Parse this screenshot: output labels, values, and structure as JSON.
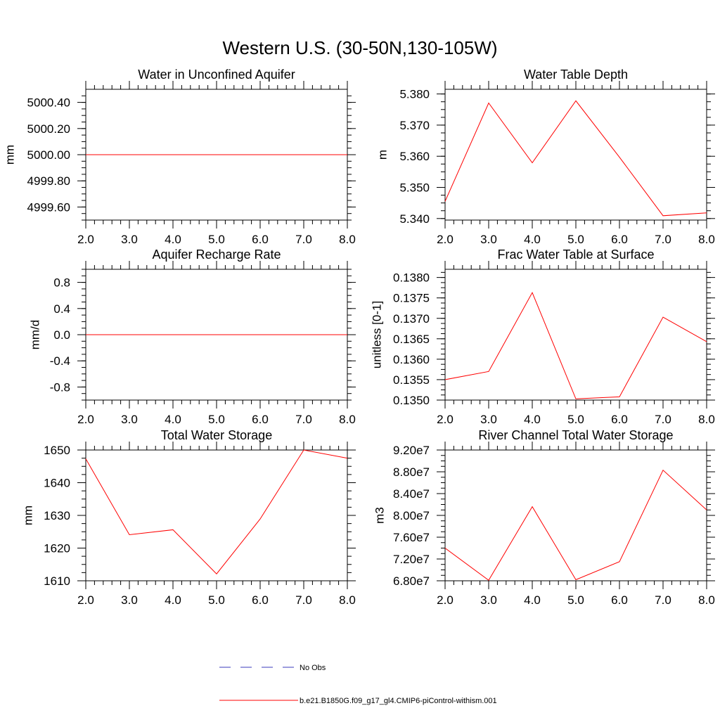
{
  "title": "Western U.S. (30-50N,130-105W)",
  "colors": {
    "model": "#ff0000",
    "obs": "#3b3bbd",
    "axes": "#000000"
  },
  "chart_data": [
    {
      "type": "line",
      "title": "Water in Unconfined Aquifer",
      "ylabel": "mm",
      "x": [
        2,
        3,
        4,
        5,
        6,
        7,
        8
      ],
      "xlim": [
        2,
        8
      ],
      "ylim": [
        4999.5,
        5000.5
      ],
      "xticks": [
        "2.0",
        "3.0",
        "4.0",
        "5.0",
        "6.0",
        "7.0",
        "8.0"
      ],
      "yticks": [
        {
          "v": 4999.6,
          "label": "4999.60"
        },
        {
          "v": 4999.8,
          "label": "4999.80"
        },
        {
          "v": 5000.0,
          "label": "5000.00"
        },
        {
          "v": 5000.2,
          "label": "5000.20"
        },
        {
          "v": 5000.4,
          "label": "5000.40"
        }
      ],
      "series": [
        {
          "values": [
            5000,
            5000,
            5000,
            5000,
            5000,
            5000,
            5000
          ]
        }
      ]
    },
    {
      "type": "line",
      "title": "Water Table Depth",
      "ylabel": "m",
      "x": [
        2,
        3,
        4,
        5,
        6,
        7,
        8
      ],
      "xlim": [
        2,
        8
      ],
      "ylim": [
        5.3395,
        5.3815
      ],
      "xticks": [
        "2.0",
        "3.0",
        "4.0",
        "5.0",
        "6.0",
        "7.0",
        "8.0"
      ],
      "yticks": [
        {
          "v": 5.34,
          "label": "5.340"
        },
        {
          "v": 5.35,
          "label": "5.350"
        },
        {
          "v": 5.36,
          "label": "5.360"
        },
        {
          "v": 5.37,
          "label": "5.370"
        },
        {
          "v": 5.38,
          "label": "5.380"
        }
      ],
      "series": [
        {
          "values": [
            5.3455,
            5.3771,
            5.3579,
            5.3778,
            5.3597,
            5.3409,
            5.3418
          ]
        }
      ]
    },
    {
      "type": "line",
      "title": "Aquifer Recharge Rate",
      "ylabel": "mm/d",
      "x": [
        2,
        3,
        4,
        5,
        6,
        7,
        8
      ],
      "xlim": [
        2,
        8
      ],
      "ylim": [
        -1,
        1
      ],
      "xticks": [
        "2.0",
        "3.0",
        "4.0",
        "5.0",
        "6.0",
        "7.0",
        "8.0"
      ],
      "yticks": [
        {
          "v": -0.8,
          "label": "-0.8"
        },
        {
          "v": -0.4,
          "label": "-0.4"
        },
        {
          "v": 0.0,
          "label": "0.0"
        },
        {
          "v": 0.4,
          "label": "0.4"
        },
        {
          "v": 0.8,
          "label": "0.8"
        }
      ],
      "series": [
        {
          "values": [
            0,
            0,
            0,
            0,
            0,
            0,
            0
          ]
        }
      ]
    },
    {
      "type": "line",
      "title": "Frac Water Table at Surface",
      "ylabel": "unitless [0-1]",
      "x": [
        2,
        3,
        4,
        5,
        6,
        7,
        8
      ],
      "xlim": [
        2,
        8
      ],
      "ylim": [
        0.135,
        0.1382
      ],
      "xticks": [
        "2.0",
        "3.0",
        "4.0",
        "5.0",
        "6.0",
        "7.0",
        "8.0"
      ],
      "yticks": [
        {
          "v": 0.135,
          "label": "0.1350"
        },
        {
          "v": 0.1355,
          "label": "0.1355"
        },
        {
          "v": 0.136,
          "label": "0.1360"
        },
        {
          "v": 0.1365,
          "label": "0.1365"
        },
        {
          "v": 0.137,
          "label": "0.1370"
        },
        {
          "v": 0.1375,
          "label": "0.1375"
        },
        {
          "v": 0.138,
          "label": "0.1380"
        }
      ],
      "series": [
        {
          "values": [
            0.1355,
            0.1357,
            0.13763,
            0.13503,
            0.13508,
            0.13703,
            0.13643
          ]
        }
      ]
    },
    {
      "type": "line",
      "title": "Total Water Storage",
      "ylabel": "mm",
      "x": [
        2,
        3,
        4,
        5,
        6,
        7,
        8
      ],
      "xlim": [
        2,
        8
      ],
      "ylim": [
        1610,
        1650
      ],
      "xticks": [
        "2.0",
        "3.0",
        "4.0",
        "5.0",
        "6.0",
        "7.0",
        "8.0"
      ],
      "yticks": [
        {
          "v": 1610,
          "label": "1610"
        },
        {
          "v": 1620,
          "label": "1620"
        },
        {
          "v": 1630,
          "label": "1630"
        },
        {
          "v": 1640,
          "label": "1640"
        },
        {
          "v": 1650,
          "label": "1650"
        }
      ],
      "series": [
        {
          "values": [
            1647.3,
            1624.1,
            1625.6,
            1612.1,
            1628.9,
            1650.0,
            1647.5
          ]
        }
      ]
    },
    {
      "type": "line",
      "title": "River Channel Total Water Storage",
      "ylabel": "m3",
      "x": [
        2,
        3,
        4,
        5,
        6,
        7,
        8
      ],
      "xlim": [
        2,
        8
      ],
      "ylim": [
        68000000,
        92000000
      ],
      "xticks": [
        "2.0",
        "3.0",
        "4.0",
        "5.0",
        "6.0",
        "7.0",
        "8.0"
      ],
      "yticks": [
        {
          "v": 68000000,
          "label": "6.80e7"
        },
        {
          "v": 72000000,
          "label": "7.20e7"
        },
        {
          "v": 76000000,
          "label": "7.60e7"
        },
        {
          "v": 80000000,
          "label": "8.00e7"
        },
        {
          "v": 84000000,
          "label": "8.40e7"
        },
        {
          "v": 88000000,
          "label": "8.80e7"
        },
        {
          "v": 92000000,
          "label": "9.20e7"
        }
      ],
      "series": [
        {
          "values": [
            74000000,
            68100000,
            81600000,
            68200000,
            71500000,
            88300000,
            81000000
          ]
        }
      ]
    }
  ],
  "legend": [
    {
      "label": "No Obs",
      "style": "dashed",
      "color": "#3b3bbd"
    },
    {
      "label": "b.e21.B1850G.f09_g17_gl4.CMIP6-piControl-withism.001",
      "style": "solid",
      "color": "#ff0000"
    }
  ]
}
